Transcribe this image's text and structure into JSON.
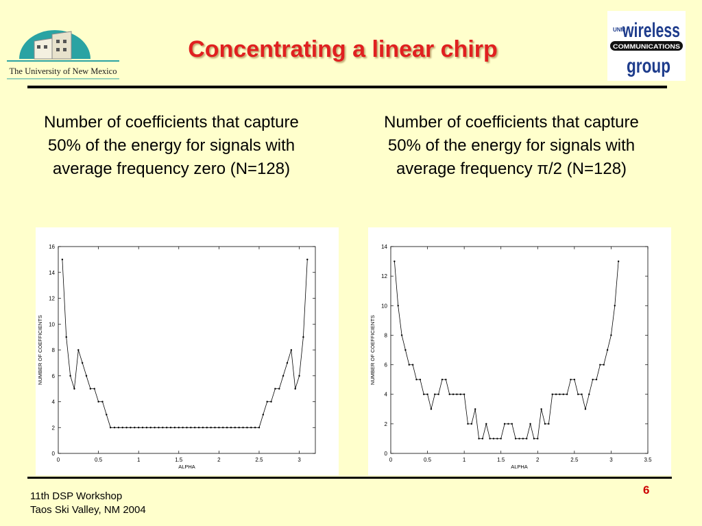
{
  "slide": {
    "title": "Concentrating a linear chirp",
    "unm_logo_text": "The University of New Mexico",
    "wcg_logo": {
      "top": "UNM",
      "main": "wireless",
      "band": "COMMUNICATIONS",
      "bottom": "group"
    },
    "caption_left": "Number of coefficients that capture 50% of the energy for signals with average frequency zero (N=128)",
    "caption_right": "Number of coefficients that capture 50% of the energy for signals with average frequency π/2 (N=128)",
    "footer_line1": "11th DSP Workshop",
    "footer_line2": "Taos Ski Valley, NM 2004",
    "page_number": "6",
    "colors": {
      "title": "#e02020",
      "background": "#ffffcc",
      "page_number": "#cc0000",
      "unm_teal": "#2aa3a3",
      "wcg_blue": "#1e3c8c"
    }
  },
  "chart_data": [
    {
      "type": "line",
      "xlabel": "ALPHA",
      "ylabel": "NUMBER OF COEFFICIENTS",
      "xlim": [
        0,
        3.2
      ],
      "ylim": [
        0,
        16
      ],
      "xticks": [
        0,
        0.5,
        1,
        1.5,
        2,
        2.5,
        3
      ],
      "yticks": [
        0,
        2,
        4,
        6,
        8,
        10,
        12,
        14,
        16
      ],
      "grid": false,
      "marker": "dot",
      "series": [
        {
          "x": [
            0.05,
            0.1,
            0.15,
            0.2,
            0.25,
            0.3,
            0.35,
            0.4,
            0.45,
            0.5,
            0.55,
            0.6,
            0.65,
            0.7,
            0.75,
            0.8,
            0.85,
            0.9,
            0.95,
            1.0,
            1.05,
            1.1,
            1.15,
            1.2,
            1.25,
            1.3,
            1.35,
            1.4,
            1.45,
            1.5,
            1.55,
            1.6,
            1.65,
            1.7,
            1.75,
            1.8,
            1.85,
            1.9,
            1.95,
            2.0,
            2.05,
            2.1,
            2.15,
            2.2,
            2.25,
            2.3,
            2.35,
            2.4,
            2.45,
            2.5,
            2.55,
            2.6,
            2.65,
            2.7,
            2.75,
            2.8,
            2.85,
            2.9,
            2.95,
            3.0,
            3.05,
            3.1
          ],
          "y": [
            15,
            9,
            6,
            5,
            8,
            7,
            6,
            5,
            5,
            4,
            4,
            3,
            2,
            2,
            2,
            2,
            2,
            2,
            2,
            2,
            2,
            2,
            2,
            2,
            2,
            2,
            2,
            2,
            2,
            2,
            2,
            2,
            2,
            2,
            2,
            2,
            2,
            2,
            2,
            2,
            2,
            2,
            2,
            2,
            2,
            2,
            2,
            2,
            2,
            2,
            3,
            4,
            4,
            5,
            5,
            6,
            7,
            8,
            5,
            6,
            9,
            15
          ]
        }
      ]
    },
    {
      "type": "line",
      "xlabel": "ALPHA",
      "ylabel": "NUMBER OF COEFFICIENTS",
      "xlim": [
        0,
        3.5
      ],
      "ylim": [
        0,
        14
      ],
      "xticks": [
        0,
        0.5,
        1,
        1.5,
        2,
        2.5,
        3,
        3.5
      ],
      "yticks": [
        0,
        2,
        4,
        6,
        8,
        10,
        12,
        14
      ],
      "grid": false,
      "marker": "dot",
      "series": [
        {
          "x": [
            0.05,
            0.1,
            0.15,
            0.2,
            0.25,
            0.3,
            0.35,
            0.4,
            0.45,
            0.5,
            0.55,
            0.6,
            0.65,
            0.7,
            0.75,
            0.8,
            0.85,
            0.9,
            0.95,
            1.0,
            1.05,
            1.1,
            1.15,
            1.2,
            1.25,
            1.3,
            1.35,
            1.4,
            1.45,
            1.5,
            1.55,
            1.6,
            1.65,
            1.7,
            1.75,
            1.8,
            1.85,
            1.9,
            1.95,
            2.0,
            2.05,
            2.1,
            2.15,
            2.2,
            2.25,
            2.3,
            2.35,
            2.4,
            2.45,
            2.5,
            2.55,
            2.6,
            2.65,
            2.7,
            2.75,
            2.8,
            2.85,
            2.9,
            2.95,
            3.0,
            3.05,
            3.1
          ],
          "y": [
            13,
            10,
            8,
            7,
            6,
            6,
            5,
            5,
            4,
            4,
            3,
            4,
            4,
            5,
            5,
            4,
            4,
            4,
            4,
            4,
            2,
            2,
            3,
            1,
            1,
            2,
            1,
            1,
            1,
            1,
            2,
            2,
            2,
            1,
            1,
            1,
            1,
            2,
            1,
            1,
            3,
            2,
            2,
            4,
            4,
            4,
            4,
            4,
            5,
            5,
            4,
            4,
            3,
            4,
            5,
            5,
            6,
            6,
            7,
            8,
            10,
            13
          ]
        }
      ]
    }
  ]
}
